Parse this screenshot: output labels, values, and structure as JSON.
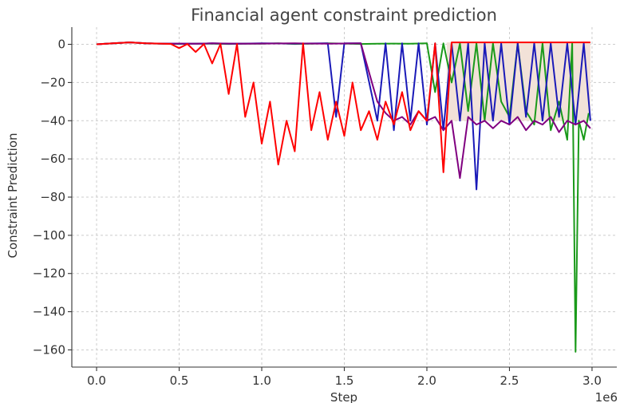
{
  "chart_data": {
    "type": "line",
    "title": "Financial agent constraint prediction",
    "xlabel": "Step",
    "ylabel": "Constraint Prediction",
    "x_offset_label": "1e6",
    "xlim": [
      -150000,
      3150000
    ],
    "ylim": [
      -169,
      9
    ],
    "xticks": [
      0,
      500000,
      1000000,
      1500000,
      2000000,
      2500000,
      3000000
    ],
    "xtick_labels": [
      "0.0",
      "0.5",
      "1.0",
      "1.5",
      "2.0",
      "2.5",
      "3.0"
    ],
    "yticks": [
      0,
      -20,
      -40,
      -60,
      -80,
      -100,
      -120,
      -140,
      -160
    ],
    "ytick_labels": [
      "0",
      "−20",
      "−40",
      "−60",
      "−80",
      "−100",
      "−120",
      "−140",
      "−160"
    ],
    "grid": true,
    "legend": "none",
    "shaded_region": {
      "x_start": 2120000,
      "x_end": 2990000,
      "y_top": 1,
      "y_bottom": -40,
      "color": "#f2e2d8"
    },
    "series": [
      {
        "color": "#1a9a1a",
        "x": [
          0,
          100000,
          200000,
          300000,
          400000,
          500000,
          600000,
          700000,
          800000,
          900000,
          1000000,
          1100000,
          1200000,
          1300000,
          1400000,
          1500000,
          1600000,
          1700000,
          1800000,
          1900000,
          2000000,
          2050000,
          2100000,
          2150000,
          2200000,
          2250000,
          2300000,
          2350000,
          2400000,
          2450000,
          2500000,
          2550000,
          2600000,
          2650000,
          2700000,
          2750000,
          2800000,
          2850000,
          2880000,
          2900000,
          2920000,
          2950000,
          2980000
        ],
        "y": [
          0,
          0.5,
          1,
          0.5,
          0.3,
          0.2,
          0.3,
          0.3,
          0.2,
          0.3,
          0.3,
          0.5,
          0.2,
          0.3,
          0.5,
          0.4,
          0.2,
          0.3,
          0.4,
          0.3,
          0.5,
          -25,
          0.5,
          -20,
          0.5,
          -35,
          0.5,
          -40,
          0.5,
          -30,
          -38,
          0.5,
          -35,
          -42,
          0.5,
          -45,
          -30,
          -50,
          0.5,
          -161,
          -40,
          -50,
          -36
        ]
      },
      {
        "color": "#1a1ab8",
        "x": [
          0,
          100000,
          200000,
          300000,
          400000,
          500000,
          600000,
          700000,
          800000,
          900000,
          1000000,
          1200000,
          1400000,
          1450000,
          1500000,
          1600000,
          1700000,
          1750000,
          1800000,
          1850000,
          1900000,
          1950000,
          2000000,
          2050000,
          2100000,
          2150000,
          2200000,
          2250000,
          2300000,
          2350000,
          2400000,
          2450000,
          2500000,
          2550000,
          2600000,
          2650000,
          2700000,
          2750000,
          2800000,
          2850000,
          2900000,
          2950000,
          2990000
        ],
        "y": [
          0,
          0.5,
          1,
          0.5,
          0.3,
          0.3,
          0.3,
          0.5,
          0.3,
          0.4,
          0.5,
          0.4,
          0.5,
          -38,
          0.5,
          0.5,
          -40,
          0.5,
          -45,
          0.5,
          -40,
          0.5,
          -42,
          0.5,
          -45,
          0.5,
          -40,
          0.5,
          -76,
          0.5,
          -40,
          0.5,
          -42,
          0.5,
          -38,
          0.5,
          -40,
          0.5,
          -38,
          0.5,
          -42,
          0.5,
          -40
        ]
      },
      {
        "color": "#800080",
        "x": [
          0,
          100000,
          200000,
          300000,
          400000,
          500000,
          600000,
          700000,
          800000,
          900000,
          1000000,
          1200000,
          1400000,
          1600000,
          1700000,
          1750000,
          1800000,
          1850000,
          1900000,
          1950000,
          2000000,
          2050000,
          2100000,
          2150000,
          2200000,
          2250000,
          2300000,
          2350000,
          2400000,
          2450000,
          2500000,
          2550000,
          2600000,
          2650000,
          2700000,
          2750000,
          2800000,
          2850000,
          2900000,
          2950000,
          2990000
        ],
        "y": [
          0,
          0.5,
          1,
          0.5,
          0.4,
          0.4,
          0.3,
          0.5,
          0.4,
          0.3,
          0.4,
          0.5,
          0.3,
          0.5,
          -30,
          -36,
          -40,
          -38,
          -42,
          -35,
          -40,
          -38,
          -45,
          -40,
          -70,
          -38,
          -42,
          -40,
          -44,
          -40,
          -42,
          -38,
          -45,
          -40,
          -42,
          -38,
          -46,
          -40,
          -42,
          -40,
          -44
        ]
      },
      {
        "color": "#ff0000",
        "x": [
          0,
          100000,
          200000,
          300000,
          400000,
          450000,
          500000,
          550000,
          600000,
          650000,
          700000,
          750000,
          800000,
          850000,
          900000,
          950000,
          1000000,
          1050000,
          1100000,
          1150000,
          1200000,
          1250000,
          1300000,
          1350000,
          1400000,
          1450000,
          1500000,
          1550000,
          1600000,
          1650000,
          1700000,
          1750000,
          1800000,
          1850000,
          1900000,
          1950000,
          2000000,
          2050000,
          2100000,
          2150000,
          2300000,
          2500000,
          2700000,
          2990000
        ],
        "y": [
          0,
          0.5,
          1,
          0.5,
          0.3,
          0.2,
          -2,
          0.2,
          -4,
          0.2,
          -10,
          0.2,
          -26,
          0.2,
          -38,
          -20,
          -52,
          -30,
          -63,
          -40,
          -56,
          0.5,
          -45,
          -25,
          -50,
          -30,
          -48,
          -20,
          -45,
          -35,
          -50,
          -30,
          -42,
          -25,
          -45,
          -35,
          -40,
          0.5,
          -67,
          1,
          1,
          1,
          1,
          1
        ]
      }
    ]
  }
}
